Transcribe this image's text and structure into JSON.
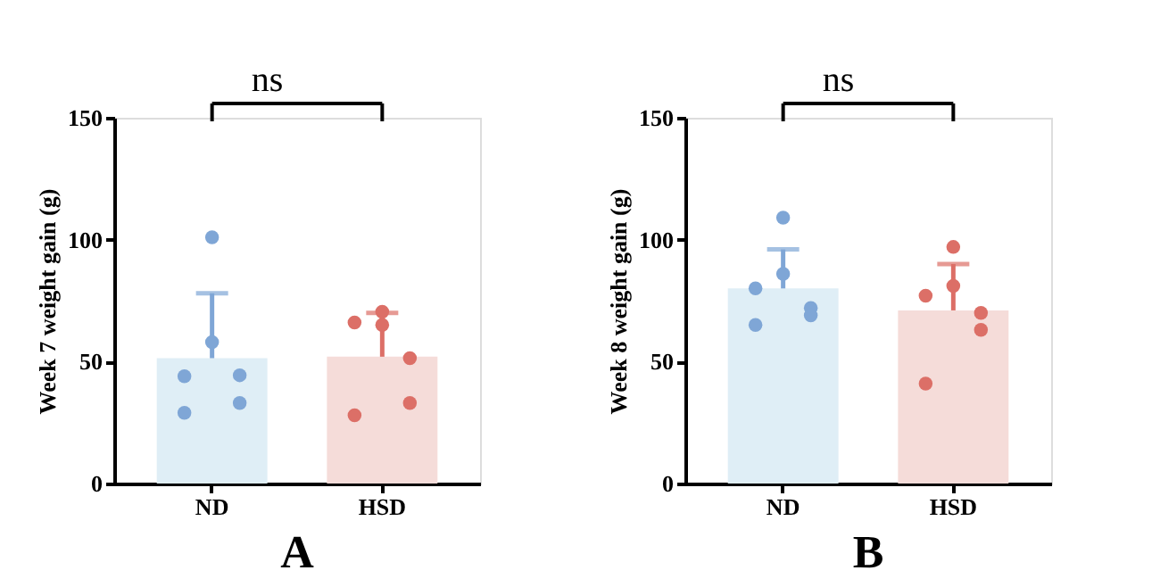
{
  "chart_data": [
    {
      "type": "bar",
      "title": "A",
      "ylabel": "Week 7 weight gain (g)",
      "categories": [
        "ND",
        "HSD"
      ],
      "ylim": [
        0,
        150
      ],
      "yticks": [
        0,
        50,
        100,
        150
      ],
      "grid": false,
      "legend": false,
      "annotations": [
        "ns"
      ],
      "series": [
        {
          "type": "bar",
          "values": [
            51.4,
            52
          ],
          "colors": [
            "#dfeef6",
            "#f5dcd9"
          ],
          "errors": [
            [
              51.4,
              78
            ],
            [
              52,
              70
            ]
          ]
        },
        {
          "type": "scatter",
          "x": [
            "ND",
            "ND",
            "ND",
            "ND",
            "ND",
            "ND",
            "HSD",
            "HSD",
            "HSD",
            "HSD",
            "HSD",
            "HSD"
          ],
          "values": [
            101,
            58,
            44,
            44.4,
            33,
            29,
            70.4,
            65,
            66,
            51.4,
            33,
            28
          ],
          "colors": [
            "#7fa6d6",
            "#7fa6d6",
            "#7fa6d6",
            "#7fa6d6",
            "#7fa6d6",
            "#7fa6d6",
            "#dc6f67",
            "#dc6f67",
            "#dc6f67",
            "#dc6f67",
            "#dc6f67",
            "#dc6f67"
          ],
          "marker": "circle"
        }
      ]
    },
    {
      "type": "bar",
      "title": "B",
      "ylabel": "Week 8 weight gain (g)",
      "categories": [
        "ND",
        "HSD"
      ],
      "ylim": [
        0,
        150
      ],
      "yticks": [
        0,
        50,
        100,
        150
      ],
      "grid": false,
      "legend": false,
      "annotations": [
        "ns"
      ],
      "series": [
        {
          "type": "bar",
          "values": [
            80,
            71
          ],
          "colors": [
            "#dfeef6",
            "#f5dcd9"
          ],
          "errors": [
            [
              80,
              96
            ],
            [
              71,
              90
            ]
          ]
        },
        {
          "type": "scatter",
          "x": [
            "ND",
            "ND",
            "ND",
            "ND",
            "ND",
            "ND",
            "HSD",
            "HSD",
            "HSD",
            "HSD",
            "HSD",
            "HSD"
          ],
          "values": [
            109,
            86,
            80,
            72,
            69,
            65,
            97,
            81,
            77,
            70,
            63,
            41
          ],
          "colors": [
            "#7fa6d6",
            "#7fa6d6",
            "#7fa6d6",
            "#7fa6d6",
            "#7fa6d6",
            "#7fa6d6",
            "#dc6f67",
            "#dc6f67",
            "#dc6f67",
            "#dc6f67",
            "#dc6f67",
            "#dc6f67"
          ],
          "marker": "circle"
        }
      ]
    }
  ]
}
